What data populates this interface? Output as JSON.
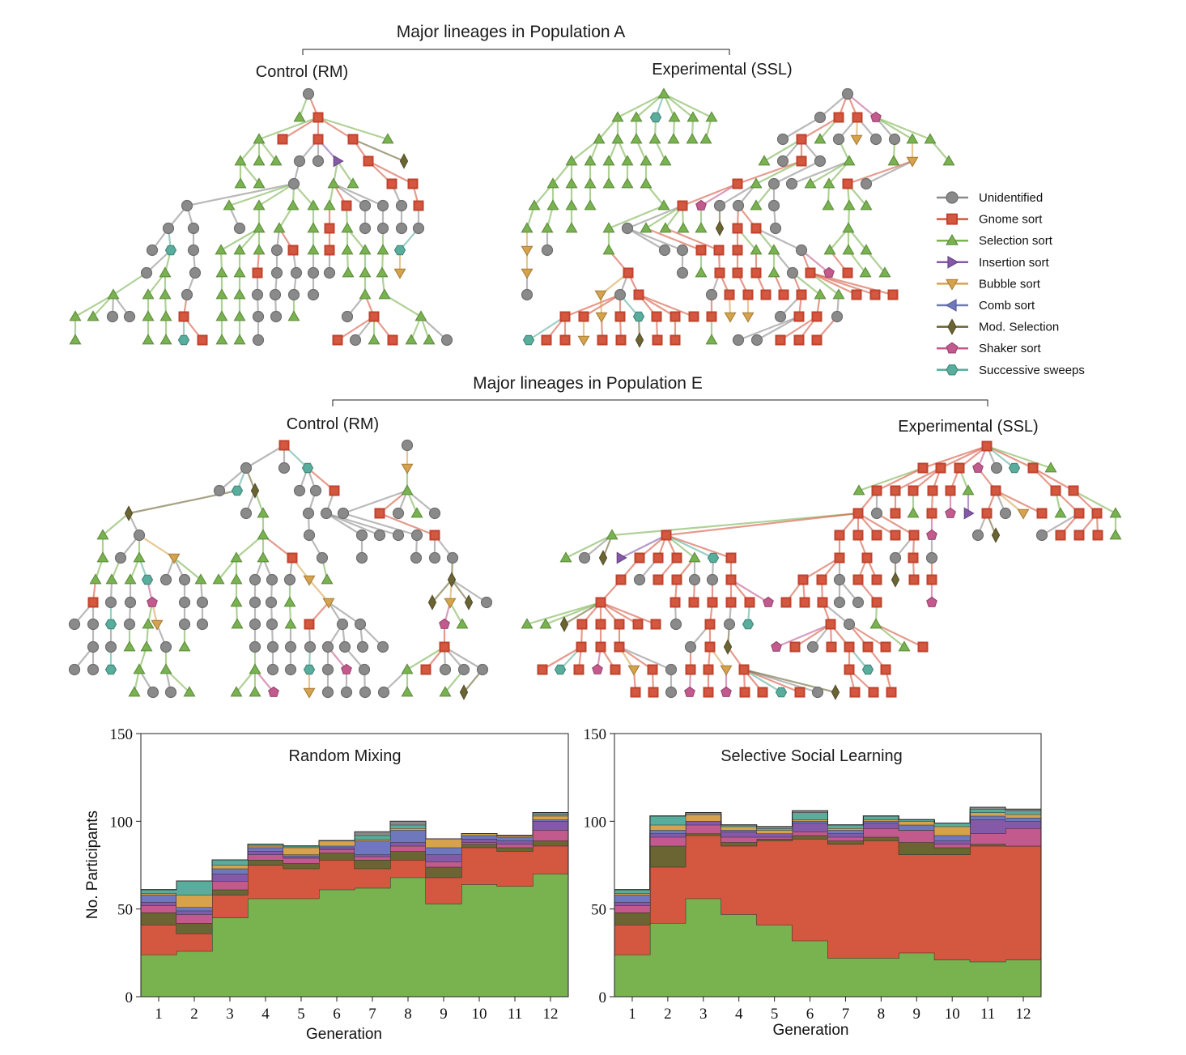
{
  "population_a": {
    "title": "Major lineages in Population A",
    "control_label": "Control (RM)",
    "experimental_label": "Experimental (SSL)"
  },
  "population_e": {
    "title": "Major lineages in Population E",
    "control_label": "Control (RM)",
    "experimental_label": "Experimental (SSL)"
  },
  "legend": [
    {
      "label": "Unidentified",
      "color": "#8a8a8a",
      "marker": "circle"
    },
    {
      "label": "Gnome sort",
      "color": "#d4573f",
      "marker": "square"
    },
    {
      "label": "Selection sort",
      "color": "#79b350",
      "marker": "triangle-up"
    },
    {
      "label": "Insertion sort",
      "color": "#8459a8",
      "marker": "triangle-right"
    },
    {
      "label": "Bubble sort",
      "color": "#d6a24c",
      "marker": "triangle-down"
    },
    {
      "label": "Comb sort",
      "color": "#6f78bd",
      "marker": "triangle-left"
    },
    {
      "label": "Mod. Selection",
      "color": "#6b6433",
      "marker": "diamond"
    },
    {
      "label": "Shaker sort",
      "color": "#c25a8e",
      "marker": "pentagon"
    },
    {
      "label": "Successive sweeps",
      "color": "#58ad9c",
      "marker": "hexagon"
    }
  ],
  "chart_data": [
    {
      "type": "area",
      "title": "Random Mixing",
      "xlabel": "Generation",
      "ylabel": "No. Participants",
      "ylim": [
        0,
        150
      ],
      "yticks": [
        "0",
        "50",
        "100",
        "150"
      ],
      "categories": [
        "1",
        "2",
        "3",
        "4",
        "5",
        "6",
        "7",
        "8",
        "9",
        "10",
        "11",
        "12"
      ],
      "series": [
        {
          "name": "Selection sort",
          "color": "#79b350",
          "values": [
            24,
            26,
            45,
            56,
            56,
            61,
            62,
            68,
            53,
            64,
            63,
            70
          ]
        },
        {
          "name": "Gnome sort",
          "color": "#d4573f",
          "values": [
            17,
            10,
            13,
            19,
            17,
            17,
            11,
            10,
            15,
            21,
            20,
            16
          ]
        },
        {
          "name": "Mod. Selection",
          "color": "#6b6433",
          "values": [
            7,
            6,
            3,
            3,
            3,
            4,
            5,
            5,
            6,
            2,
            2,
            3
          ]
        },
        {
          "name": "Shaker sort",
          "color": "#c25a8e",
          "values": [
            4,
            5,
            5,
            3,
            3,
            2,
            2,
            3,
            3,
            1,
            2,
            6
          ]
        },
        {
          "name": "Insertion sort",
          "color": "#8459a8",
          "values": [
            2,
            2,
            4,
            2,
            1,
            1,
            1,
            2,
            4,
            2,
            2,
            5
          ]
        },
        {
          "name": "Comb sort",
          "color": "#6f78bd",
          "values": [
            4,
            2,
            3,
            2,
            1,
            1,
            8,
            7,
            4,
            2,
            2,
            1
          ]
        },
        {
          "name": "Bubble sort",
          "color": "#d6a24c",
          "values": [
            1,
            7,
            2,
            1,
            4,
            3,
            1,
            1,
            5,
            1,
            1,
            2
          ]
        },
        {
          "name": "Successive sweeps",
          "color": "#58ad9c",
          "values": [
            2,
            8,
            3,
            1,
            1,
            0,
            2,
            2,
            0,
            0,
            0,
            1
          ]
        },
        {
          "name": "Unidentified",
          "color": "#8a8a8a",
          "values": [
            0,
            0,
            0,
            0,
            0,
            0,
            2,
            2,
            0,
            0,
            0,
            1
          ]
        }
      ]
    },
    {
      "type": "area",
      "title": "Selective Social Learning",
      "xlabel": "Generation",
      "ylabel": "",
      "ylim": [
        0,
        150
      ],
      "yticks": [
        "0",
        "50",
        "100",
        "150"
      ],
      "categories": [
        "1",
        "2",
        "3",
        "4",
        "5",
        "6",
        "7",
        "8",
        "9",
        "10",
        "11",
        "12"
      ],
      "series": [
        {
          "name": "Selection sort",
          "color": "#79b350",
          "values": [
            24,
            42,
            56,
            47,
            41,
            32,
            22,
            22,
            25,
            21,
            20,
            21
          ]
        },
        {
          "name": "Gnome sort",
          "color": "#d4573f",
          "values": [
            17,
            32,
            36,
            39,
            48,
            58,
            65,
            67,
            56,
            60,
            66,
            65
          ]
        },
        {
          "name": "Mod. Selection",
          "color": "#6b6433",
          "values": [
            7,
            12,
            1,
            2,
            1,
            2,
            2,
            2,
            7,
            4,
            1,
            0
          ]
        },
        {
          "name": "Shaker sort",
          "color": "#c25a8e",
          "values": [
            4,
            5,
            5,
            3,
            1,
            2,
            2,
            5,
            7,
            2,
            6,
            10
          ]
        },
        {
          "name": "Insertion sort",
          "color": "#8459a8",
          "values": [
            2,
            2,
            2,
            3,
            2,
            5,
            2,
            3,
            0,
            2,
            8,
            4
          ]
        },
        {
          "name": "Comb sort",
          "color": "#6f78bd",
          "values": [
            4,
            2,
            0,
            1,
            0,
            1,
            2,
            1,
            3,
            3,
            2,
            2
          ]
        },
        {
          "name": "Bubble sort",
          "color": "#d6a24c",
          "values": [
            1,
            3,
            4,
            2,
            2,
            1,
            1,
            1,
            2,
            5,
            2,
            2
          ]
        },
        {
          "name": "Successive sweeps",
          "color": "#58ad9c",
          "values": [
            2,
            5,
            0,
            1,
            1,
            4,
            2,
            2,
            1,
            2,
            2,
            2
          ]
        },
        {
          "name": "Unidentified",
          "color": "#8a8a8a",
          "values": [
            0,
            0,
            1,
            0,
            1,
            1,
            0,
            0,
            0,
            0,
            1,
            1
          ]
        }
      ]
    }
  ]
}
